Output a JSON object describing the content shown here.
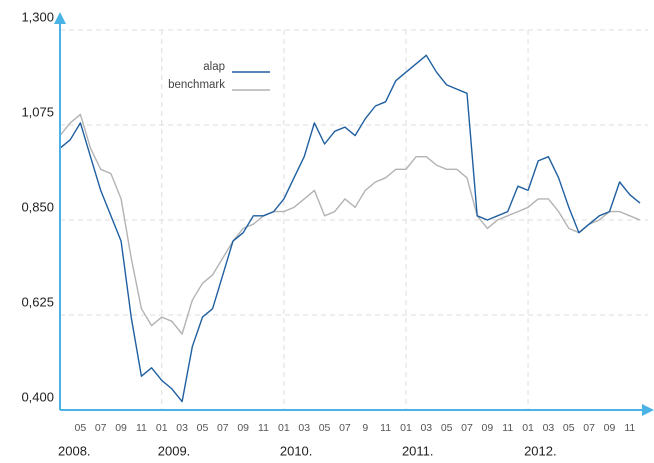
{
  "chart_data": {
    "type": "line",
    "x": [
      "2008-03",
      "2008-04",
      "2008-05",
      "2008-06",
      "2008-07",
      "2008-08",
      "2008-09",
      "2008-10",
      "2008-11",
      "2008-12",
      "2009-01",
      "2009-02",
      "2009-03",
      "2009-04",
      "2009-05",
      "2009-06",
      "2009-07",
      "2009-08",
      "2009-09",
      "2009-10",
      "2009-11",
      "2009-12",
      "2010-01",
      "2010-02",
      "2010-03",
      "2010-04",
      "2010-05",
      "2010-06",
      "2010-07",
      "2010-08",
      "2010-09",
      "2010-10",
      "2010-11",
      "2010-12",
      "2011-01",
      "2011-02",
      "2011-03",
      "2011-04",
      "2011-05",
      "2011-06",
      "2011-07",
      "2011-08",
      "2011-09",
      "2011-10",
      "2011-11",
      "2011-12",
      "2012-01",
      "2012-02",
      "2012-03",
      "2012-04",
      "2012-05",
      "2012-06",
      "2012-07",
      "2012-08",
      "2012-09",
      "2012-10",
      "2012-11",
      "2012-12"
    ],
    "series": [
      {
        "name": "alap",
        "color": "#1f5fa0",
        "values": [
          1.02,
          1.04,
          1.08,
          1.0,
          0.92,
          0.86,
          0.8,
          0.62,
          0.48,
          0.5,
          0.47,
          0.45,
          0.42,
          0.55,
          0.62,
          0.64,
          0.72,
          0.8,
          0.82,
          0.86,
          0.86,
          0.87,
          0.9,
          0.95,
          1.0,
          1.08,
          1.03,
          1.06,
          1.07,
          1.05,
          1.09,
          1.12,
          1.13,
          1.18,
          1.2,
          1.22,
          1.24,
          1.2,
          1.17,
          1.16,
          1.15,
          0.86,
          0.85,
          0.86,
          0.87,
          0.93,
          0.92,
          0.99,
          1.0,
          0.95,
          0.88,
          0.82,
          0.84,
          0.86,
          0.87,
          0.94,
          0.91,
          0.89
        ]
      },
      {
        "name": "benchmark",
        "color": "#b3b3b3",
        "values": [
          1.05,
          1.08,
          1.1,
          1.02,
          0.97,
          0.96,
          0.9,
          0.76,
          0.64,
          0.6,
          0.62,
          0.61,
          0.58,
          0.66,
          0.7,
          0.72,
          0.76,
          0.8,
          0.83,
          0.84,
          0.86,
          0.87,
          0.87,
          0.88,
          0.9,
          0.92,
          0.86,
          0.87,
          0.9,
          0.88,
          0.92,
          0.94,
          0.95,
          0.97,
          0.97,
          1.0,
          1.0,
          0.98,
          0.97,
          0.97,
          0.95,
          0.86,
          0.83,
          0.85,
          0.86,
          0.87,
          0.88,
          0.9,
          0.9,
          0.87,
          0.83,
          0.82,
          0.84,
          0.85,
          0.87,
          0.87,
          0.86,
          0.85
        ]
      }
    ],
    "xlim": [
      "2008-03",
      "2012-12"
    ],
    "xticks": [
      {
        "value": "2008-05",
        "label": "05"
      },
      {
        "value": "2008-07",
        "label": "07"
      },
      {
        "value": "2008-09",
        "label": "09"
      },
      {
        "value": "2008-11",
        "label": "11"
      },
      {
        "value": "2009-01",
        "label": "01"
      },
      {
        "value": "2009-03",
        "label": "03"
      },
      {
        "value": "2009-05",
        "label": "05"
      },
      {
        "value": "2009-07",
        "label": "07"
      },
      {
        "value": "2009-09",
        "label": "09"
      },
      {
        "value": "2009-11",
        "label": "11"
      },
      {
        "value": "2010-01",
        "label": "01"
      },
      {
        "value": "2010-03",
        "label": "03"
      },
      {
        "value": "2010-05",
        "label": "05"
      },
      {
        "value": "2010-07",
        "label": "07"
      },
      {
        "value": "2010-09",
        "label": "9"
      },
      {
        "value": "2010-11",
        "label": "11"
      },
      {
        "value": "2011-01",
        "label": "01"
      },
      {
        "value": "2011-03",
        "label": "03"
      },
      {
        "value": "2011-05",
        "label": "05"
      },
      {
        "value": "2011-07",
        "label": "07"
      },
      {
        "value": "2011-09",
        "label": "09"
      },
      {
        "value": "2011-11",
        "label": "11"
      },
      {
        "value": "2012-01",
        "label": "01"
      },
      {
        "value": "2012-03",
        "label": "03"
      },
      {
        "value": "2012-05",
        "label": "05"
      },
      {
        "value": "2012-07",
        "label": "07"
      },
      {
        "value": "2012-09",
        "label": "09"
      },
      {
        "value": "2012-11",
        "label": "11"
      }
    ],
    "year_ticks": [
      {
        "value": "2008-01",
        "label": "2008."
      },
      {
        "value": "2009-01",
        "label": "2009."
      },
      {
        "value": "2010-01",
        "label": "2010."
      },
      {
        "value": "2011-01",
        "label": "2011."
      },
      {
        "value": "2012-01",
        "label": "2012."
      }
    ],
    "ylim": [
      0.4,
      1.3
    ],
    "yticks": [
      {
        "value": 0.4,
        "label": "0,400"
      },
      {
        "value": 0.625,
        "label": "0,625"
      },
      {
        "value": 0.85,
        "label": "0,850"
      },
      {
        "value": 1.075,
        "label": "1,075"
      },
      {
        "value": 1.3,
        "label": "1,300"
      }
    ],
    "grid": true,
    "legend": "top-left"
  }
}
